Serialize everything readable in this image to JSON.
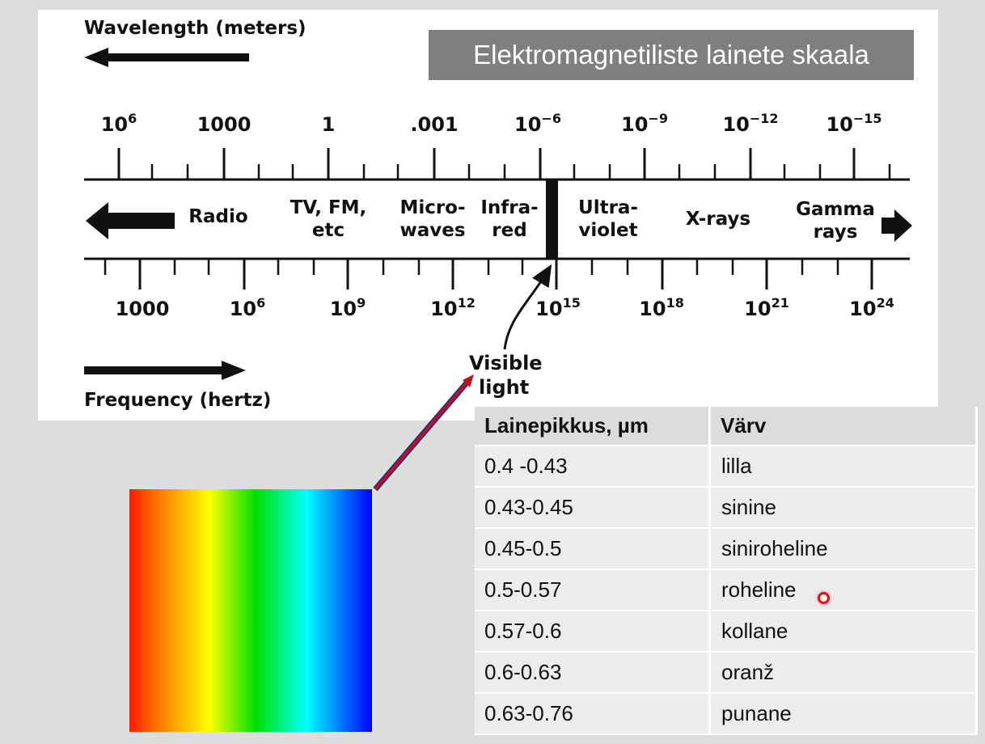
{
  "title": "Elektromagnetiliste lainete skaala",
  "wavelength_axis": {
    "label": "Wavelength (meters)",
    "ticks": [
      {
        "base": "10",
        "exp": "6"
      },
      {
        "base": "1000",
        "exp": ""
      },
      {
        "base": "1",
        "exp": ""
      },
      {
        "base": ".001",
        "exp": ""
      },
      {
        "base": "10",
        "exp": "−6"
      },
      {
        "base": "10",
        "exp": "−9"
      },
      {
        "base": "10",
        "exp": "−12"
      },
      {
        "base": "10",
        "exp": "−15"
      }
    ]
  },
  "frequency_axis": {
    "label": "Frequency (hertz)",
    "ticks": [
      {
        "base": "1000",
        "exp": ""
      },
      {
        "base": "10",
        "exp": "6"
      },
      {
        "base": "10",
        "exp": "9"
      },
      {
        "base": "10",
        "exp": "12"
      },
      {
        "base": "10",
        "exp": "15"
      },
      {
        "base": "10",
        "exp": "18"
      },
      {
        "base": "10",
        "exp": "21"
      },
      {
        "base": "10",
        "exp": "24"
      }
    ]
  },
  "bands": [
    {
      "lines": [
        "Radio"
      ]
    },
    {
      "lines": [
        "TV, FM,",
        "etc"
      ]
    },
    {
      "lines": [
        "Micro-",
        "waves"
      ]
    },
    {
      "lines": [
        "Infra-",
        "red"
      ]
    },
    {
      "lines": [
        "Ultra-",
        "violet"
      ]
    },
    {
      "lines": [
        "X-rays"
      ]
    },
    {
      "lines": [
        "Gamma",
        "rays"
      ]
    }
  ],
  "visible_label": [
    "Visible",
    "light"
  ],
  "visible_gradient_colors": [
    "#ff1a00",
    "#ff8000",
    "#ffff00",
    "#00e000",
    "#00ffff",
    "#0000ff"
  ],
  "table": {
    "headers": [
      "Lainepikkus, µm",
      "Värv"
    ],
    "rows": [
      [
        "0.4 -0.43",
        "lilla"
      ],
      [
        "0.43-0.45",
        "sinine"
      ],
      [
        "0.45-0.5",
        "siniroheline"
      ],
      [
        "0.5-0.57",
        "roheline"
      ],
      [
        "0.57-0.6",
        "kollane"
      ],
      [
        "0.6-0.63",
        "oranž"
      ],
      [
        "0.63-0.76",
        "punane"
      ]
    ]
  }
}
